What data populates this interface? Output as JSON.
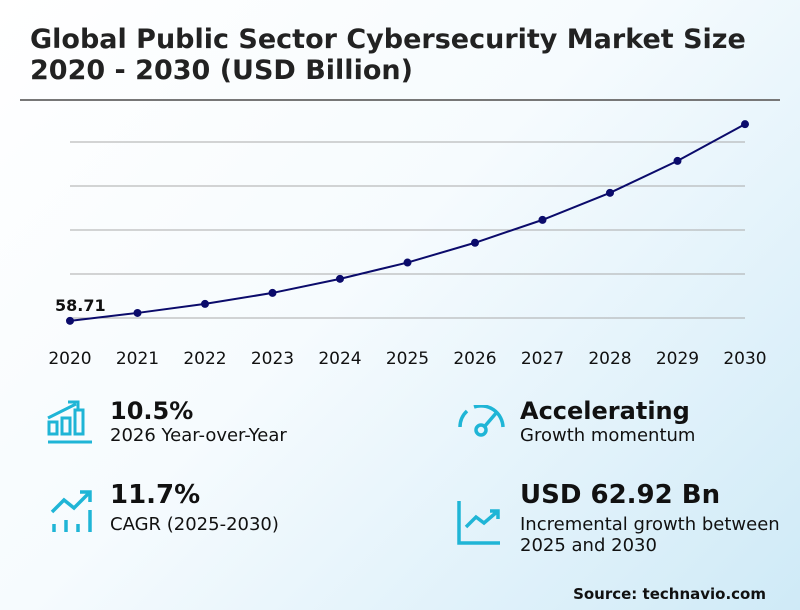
{
  "title": "Global Public Sector Cybersecurity Market Size 2020 - 2030 (USD Billion)",
  "chart_data": {
    "type": "line",
    "title": "Global Public Sector Cybersecurity Market Size 2020 - 2030 (USD Billion)",
    "x": [
      "2020",
      "2021",
      "2022",
      "2023",
      "2024",
      "2025",
      "2026",
      "2027",
      "2028",
      "2029",
      "2030"
    ],
    "values": [
      58.71,
      62.3,
      66.4,
      71.4,
      77.8,
      85.2,
      94.2,
      104.6,
      116.9,
      131.4,
      148.1
    ],
    "data_labels": {
      "2020": "58.71"
    },
    "ylim": [
      60,
      140
    ],
    "grid_values": [
      60,
      80,
      100,
      120,
      140
    ],
    "grid": true,
    "xlabel": "",
    "ylabel": "",
    "line_color": "#0b0b6b"
  },
  "stats": [
    {
      "value": "10.5%",
      "label": "2026 Year-over-Year",
      "icon": "bar-chart-growth-icon"
    },
    {
      "value": "Accelerating",
      "label": "Growth momentum",
      "icon": "speedometer-icon"
    },
    {
      "value": "11.7%",
      "label": "CAGR (2025-2030)",
      "icon": "trend-up-bars-icon"
    },
    {
      "value": "USD 62.92 Bn",
      "label": "Incremental growth between 2025 and 2030",
      "icon": "line-chart-up-icon"
    }
  ],
  "source": "Source: technavio.com",
  "accent": "#1fb5d6"
}
